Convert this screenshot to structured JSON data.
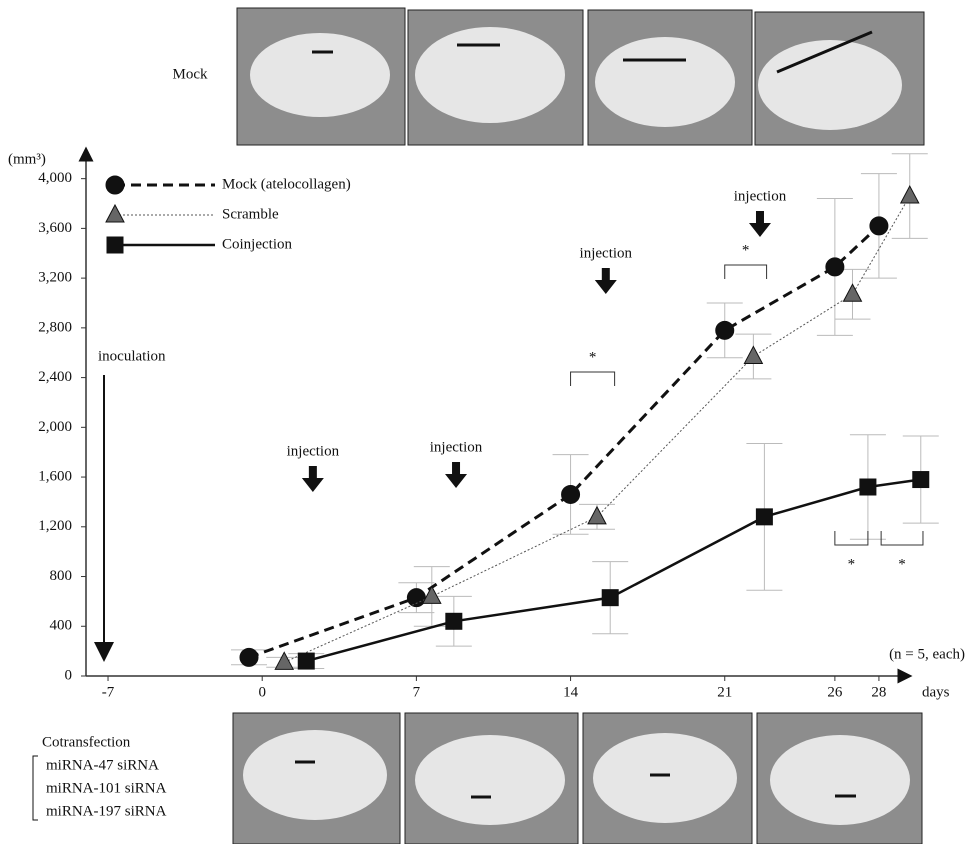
{
  "chart_data": {
    "type": "line",
    "x_label": "days",
    "y_label": "(mm³)",
    "xlim": [
      -8,
      31
    ],
    "xticks": [
      -7,
      0,
      7,
      14,
      21,
      26,
      28
    ],
    "ylim": [
      0,
      4150
    ],
    "yticks": [
      0,
      400,
      800,
      {
        "value": 1200,
        "label": "1,200"
      },
      {
        "value": 1600,
        "label": "1,600"
      },
      {
        "value": 2000,
        "label": "2,000"
      },
      {
        "value": 2400,
        "label": "2,400"
      },
      {
        "value": 2800,
        "label": "2,800"
      },
      {
        "value": 3200,
        "label": "3,200"
      },
      {
        "value": 3600,
        "label": "3,600"
      },
      {
        "value": 4000,
        "label": "4,000"
      }
    ],
    "series": [
      {
        "name": "Mock (atelocollagen)",
        "color": "#111111",
        "line_style": "dashed",
        "marker": "circle",
        "x": [
          -0.6,
          7,
          14,
          21,
          26,
          28
        ],
        "values": [
          150,
          630,
          1460,
          2780,
          3290,
          3620
        ],
        "errors": [
          60,
          120,
          320,
          220,
          550,
          420
        ]
      },
      {
        "name": "Scramble",
        "color": "#555555",
        "line_style": "dotted",
        "marker": "triangle",
        "x": [
          1,
          7.7,
          15.2,
          22.3,
          26.8,
          29.4
        ],
        "values": [
          110,
          640,
          1280,
          2570,
          3070,
          3860
        ],
        "errors": [
          40,
          240,
          100,
          180,
          200,
          340
        ]
      },
      {
        "name": "Coinjection",
        "color": "#111111",
        "line_style": "solid",
        "marker": "square",
        "x": [
          2,
          8.7,
          15.8,
          22.8,
          27.5,
          29.9
        ],
        "values": [
          120,
          440,
          630,
          1280,
          1520,
          1580
        ],
        "errors": [
          60,
          200,
          290,
          590,
          420,
          350
        ]
      }
    ],
    "annotations": [
      "inoculation",
      "injection",
      "injection",
      "injection",
      "injection",
      "*",
      "*",
      "*",
      "*",
      "(n = 5, each)"
    ]
  },
  "top_panel": {
    "label": "Mock"
  },
  "bottom_panel": {
    "label": "Cotransfection",
    "items": [
      "miRNA-47 siRNA",
      "miRNA-101 siRNA",
      "miRNA-197 siRNA"
    ]
  }
}
